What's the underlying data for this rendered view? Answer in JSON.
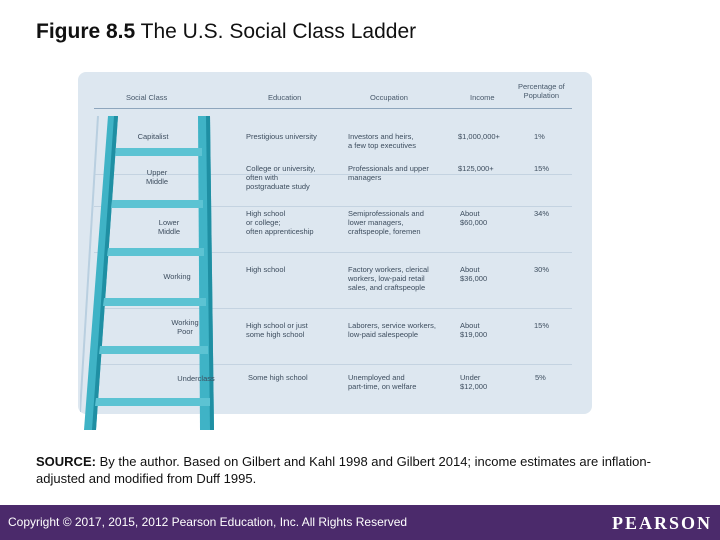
{
  "title": {
    "bold": "Figure 8.5",
    "text": " The U.S. Social Class Ladder"
  },
  "table": {
    "headers": {
      "social_class": "Social Class",
      "education": "Education",
      "occupation": "Occupation",
      "income": "Income",
      "percentage": "Percentage of\nPopulation"
    },
    "rows": [
      {
        "class": "Capitalist",
        "education": "Prestigious university",
        "occupation": "Investors and heirs,\na few top executives",
        "income": "$1,000,000+",
        "percentage": "1%"
      },
      {
        "class": "Upper\nMiddle",
        "education": "College or university,\noften with\npostgraduate study",
        "occupation": "Professionals and upper\nmanagers",
        "income": "$125,000+",
        "percentage": "15%"
      },
      {
        "class": "Lower\nMiddle",
        "education": "High school\nor college;\noften apprenticeship",
        "occupation": "Semiprofessionals and\nlower managers,\ncraftspeople, foremen",
        "income": "About\n$60,000",
        "percentage": "34%"
      },
      {
        "class": "Working",
        "education": "High school",
        "occupation": "Factory workers, clerical\nworkers, low-paid retail\nsales, and craftspeople",
        "income": "About\n$36,000",
        "percentage": "30%"
      },
      {
        "class": "Working\nPoor",
        "education": "High school or just\nsome high school",
        "occupation": "Laborers, service workers,\nlow-paid salespeople",
        "income": "About\n$19,000",
        "percentage": "15%"
      },
      {
        "class": "Underclass",
        "education": "Some high school",
        "occupation": "Unemployed and\npart-time, on welfare",
        "income": "Under\n$12,000",
        "percentage": "5%"
      }
    ]
  },
  "source": {
    "label": "SOURCE:",
    "text": " By the author. Based on Gilbert and Kahl 1998 and Gilbert 2014; income estimates are inflation-adjusted and modified from Duff 1995."
  },
  "footer": {
    "copyright": "Copyright © 2017, 2015, 2012 Pearson Education, Inc. All Rights Reserved",
    "logo": "PEARSON"
  },
  "colors": {
    "ladder": "#3fb3c6",
    "ladder_dark": "#1f8fa3",
    "footer_bg": "#4b2a6b",
    "figure_bg": "#dde7f0"
  }
}
